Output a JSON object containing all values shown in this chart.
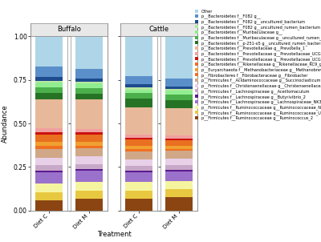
{
  "x_labels": [
    "Diet C",
    "Diet M",
    "Diet C",
    "Diet M"
  ],
  "xlabel": "Treatment",
  "ylabel": "Abundance",
  "yticks": [
    0.0,
    0.25,
    0.5,
    0.75,
    1.0
  ],
  "facet_labels": [
    "Buffalo",
    "Cattle"
  ],
  "legend_labels": [
    "Other",
    "p__Bacteroidetes f__F082 g__",
    "p__Bacteroidetes f__F082 g__uncultured_bacterium",
    "p__Bacteroidetes f__F082 g__uncultured_rumen_bacterium",
    "p__Bacteroidetes f__Muribaculaceae g__",
    "p__Bacteroidetes f__Muribaculaceae g__uncultured_rumen_bacterium",
    "p__Bacteroidetes f__p-251-o5 g__uncultured_rumen_bacterium",
    "p__Bacteroidetes f__Prevotellaceae g__Prevotella_1",
    "p__Bacteroidetes f__Prevotellaceae g__Prevotellaceae_UCG-001",
    "p__Bacteroidetes f__Prevotellaceae g__Prevotellaceae_UCG-003",
    "p__Bacteroidetes f__Rikenellaceae g__Rikenellaceae_RC9_gut_group",
    "p__Euryarchaeota f__Methanobacteriaceae g__Methanobrevibacter",
    "p__Fibrobacteres f__Fibrobacteraceae g__Fibrobacter",
    "p__Firmicutes f__Acidaminococcaceae g__Succinoclasticum",
    "p__Firmicutes f__Christensenellaceae g__Christensenellaceae_R-7_group",
    "p__Firmicutes f__Lachnospiraceae g__Aceillomaculum",
    "p__Firmicutes f__Lachnospiraceae g__Butyrivibrio_2",
    "p__Firmicutes f__Lachnospiraceae g__Lachnospiraceae_NK3A20_group",
    "p__Firmicutes f__Ruminococcaceae g__Ruminococcaceae_NK4A214_group",
    "p__Firmicutes f__Ruminococcaceae g__Ruminococcaceae_UCG-005",
    "p__Firmicutes f__Ruminococcaceae g__Ruminococcus_2"
  ],
  "colors": [
    "#AED6E8",
    "#5B8FC9",
    "#1E4B8E",
    "#B8E6A0",
    "#90EE90",
    "#4BAF4B",
    "#267326",
    "#E8B89A",
    "#F0A0A0",
    "#CC1111",
    "#E87020",
    "#F0A030",
    "#F07020",
    "#D0A888",
    "#E8D0E8",
    "#C8A8C8",
    "#5B1A8E",
    "#9B72CB",
    "#F5F5A0",
    "#E8C840",
    "#8B4513"
  ],
  "data": {
    "Buffalo_DietC": [
      0.15,
      0.055,
      0.018,
      0.01,
      0.022,
      0.03,
      0.032,
      0.145,
      0.018,
      0.012,
      0.038,
      0.022,
      0.015,
      0.042,
      0.038,
      0.028,
      0.008,
      0.055,
      0.045,
      0.04,
      0.052
    ],
    "Buffalo_DietM": [
      0.155,
      0.048,
      0.016,
      0.009,
      0.02,
      0.028,
      0.028,
      0.142,
      0.016,
      0.01,
      0.034,
      0.02,
      0.012,
      0.04,
      0.036,
      0.026,
      0.007,
      0.052,
      0.042,
      0.042,
      0.055
    ],
    "Cattle_DietC": [
      0.195,
      0.038,
      0.016,
      0.009,
      0.018,
      0.028,
      0.04,
      0.133,
      0.016,
      0.009,
      0.028,
      0.018,
      0.011,
      0.038,
      0.033,
      0.024,
      0.006,
      0.048,
      0.04,
      0.04,
      0.058
    ],
    "Cattle_DietM": [
      0.2,
      0.035,
      0.014,
      0.008,
      0.016,
      0.026,
      0.038,
      0.128,
      0.015,
      0.008,
      0.026,
      0.016,
      0.01,
      0.036,
      0.031,
      0.023,
      0.006,
      0.046,
      0.038,
      0.038,
      0.062
    ]
  },
  "bar_order_bottom_to_top": [
    20,
    19,
    18,
    17,
    16,
    15,
    14,
    13,
    12,
    11,
    10,
    9,
    8,
    7,
    6,
    5,
    4,
    3,
    2,
    1,
    0
  ]
}
